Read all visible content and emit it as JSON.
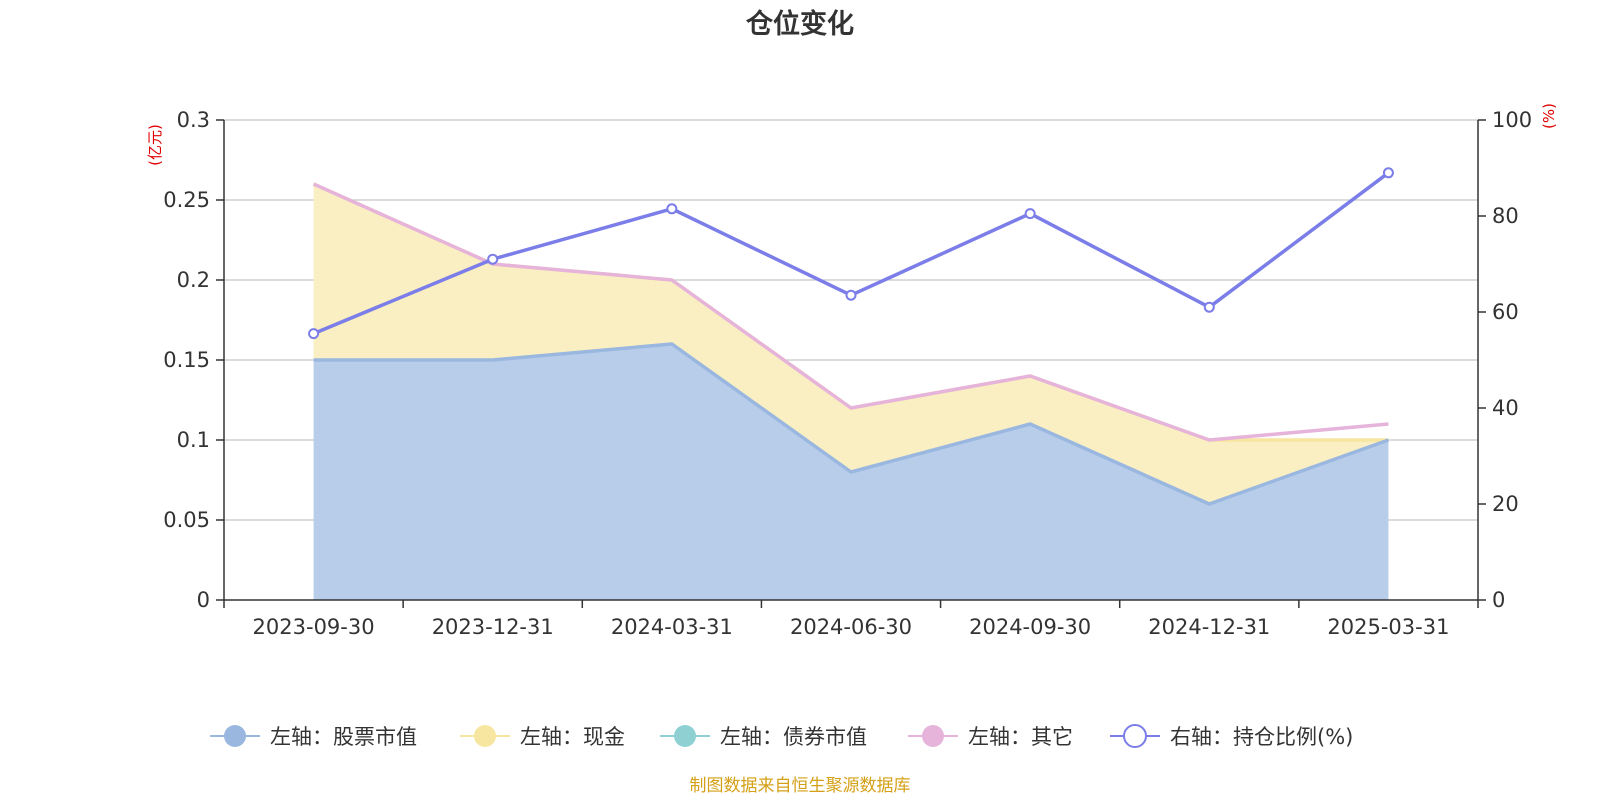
{
  "title": "仓位变化",
  "source": "制图数据来自恒生聚源数据库",
  "colors": {
    "stock": "#9ab7e0",
    "stock_fill": "#b8cdea",
    "cash": "#f7e6a0",
    "cash_fill": "#faefc2",
    "bond": "#8fd1d3",
    "other": "#e6b3da",
    "ratio": "#7b7de8",
    "grid": "#c8c8c8",
    "axis": "#333333",
    "unit": "#e00000",
    "source": "#d4a017"
  },
  "chart_data": {
    "type": "area",
    "title": "仓位变化",
    "categories": [
      "2023-09-30",
      "2023-12-31",
      "2024-03-31",
      "2024-06-30",
      "2024-09-30",
      "2024-12-31",
      "2025-03-31"
    ],
    "left_axis": {
      "unit": "(亿元)",
      "ylim": [
        0,
        0.3
      ],
      "ticks": [
        "0",
        "0.05",
        "0.1",
        "0.15",
        "0.2",
        "0.25",
        "0.3"
      ],
      "tick_values": [
        0,
        0.05,
        0.1,
        0.15,
        0.2,
        0.25,
        0.3
      ]
    },
    "right_axis": {
      "unit": "(%)",
      "ylim": [
        0,
        100
      ],
      "ticks": [
        "0",
        "20",
        "40",
        "60",
        "80",
        "100"
      ],
      "tick_values": [
        0,
        20,
        40,
        60,
        80,
        100
      ]
    },
    "series": [
      {
        "key": "stock",
        "name": "左轴：股票市值",
        "axis": "left",
        "stacked": true,
        "values": [
          0.15,
          0.15,
          0.16,
          0.08,
          0.11,
          0.06,
          0.1
        ]
      },
      {
        "key": "cash",
        "name": "左轴：现金",
        "axis": "left",
        "stacked": true,
        "values": [
          0.11,
          0.06,
          0.04,
          0.04,
          0.03,
          0.04,
          0.0
        ]
      },
      {
        "key": "bond",
        "name": "左轴：债券市值",
        "axis": "left",
        "stacked": true,
        "values": [
          0,
          0,
          0,
          0,
          0,
          0,
          0
        ]
      },
      {
        "key": "other",
        "name": "左轴：其它",
        "axis": "left",
        "stacked": true,
        "values": [
          0,
          0,
          0,
          0,
          0,
          0,
          0.01
        ]
      },
      {
        "key": "ratio",
        "name": "右轴：持仓比例(%)",
        "axis": "right",
        "stacked": false,
        "values": [
          55.5,
          71.0,
          81.5,
          63.5,
          80.5,
          61.0,
          89.0
        ]
      }
    ],
    "grid": true,
    "legend_position": "bottom"
  }
}
